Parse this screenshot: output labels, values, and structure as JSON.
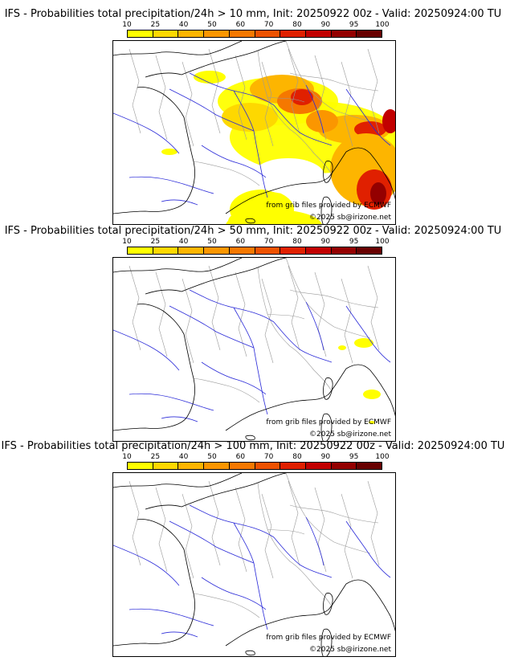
{
  "colorbar": {
    "ticks": [
      "10",
      "25",
      "40",
      "50",
      "60",
      "70",
      "80",
      "90",
      "95",
      "100"
    ],
    "colors": [
      "#ffff00",
      "#fed800",
      "#fdb500",
      "#fb9600",
      "#f57800",
      "#ee5200",
      "#e02000",
      "#c20000",
      "#940000",
      "#680000"
    ]
  },
  "panels": [
    {
      "title": "IFS - Probabilities total precipitation/24h > 10 mm, Init: 20250922 00z - Valid: 20250924:00 TU",
      "credit1": "from grib files provided by ECMWF",
      "credit2": "©2025 sb@irizone.net",
      "field_level": "high"
    },
    {
      "title": "IFS - Probabilities total precipitation/24h > 50 mm, Init: 20250922 00z - Valid: 20250924:00 TU",
      "credit1": "from grib files provided by ECMWF",
      "credit2": "©2025 sb@irizone.net",
      "field_level": "low"
    },
    {
      "title": "IFS - Probabilities total precipitation/24h > 100 mm, Init: 20250922 00z - Valid: 20250924:00 TU",
      "credit1": "from grib files provided by ECMWF",
      "credit2": "©2025 sb@irizone.net",
      "field_level": "none"
    }
  ],
  "colors": {
    "coast": "#000000",
    "rivers": "#2a2ad8",
    "borders": "#9a9a9a"
  }
}
